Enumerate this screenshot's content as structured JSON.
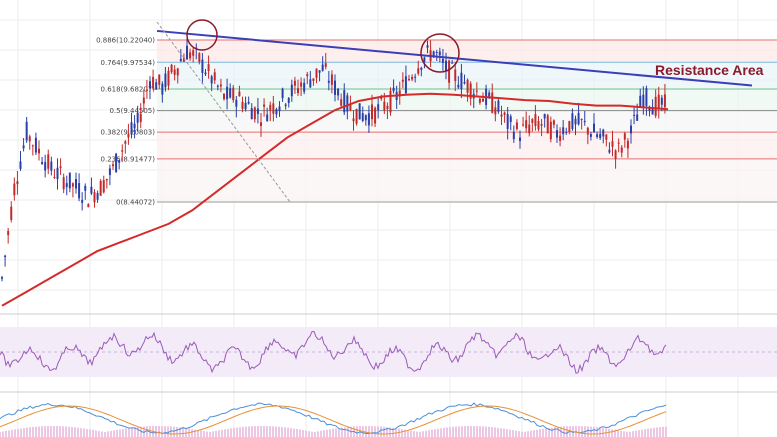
{
  "chart_data": {
    "type": "candlestick",
    "title": "",
    "xlabel": "",
    "ylabel": "",
    "ylim": [
      8.2,
      10.45
    ],
    "grid": true,
    "fib_levels": [
      {
        "ratio": "0.886",
        "price": "10.22040",
        "label": "0.886(10.22040)",
        "value": 10.2204
      },
      {
        "ratio": "0.764",
        "price": "9.97534",
        "label": "0.764(9.97534)",
        "value": 9.97534
      },
      {
        "ratio": "0.618",
        "price": "9.68207",
        "label": "0.618(9.68207)",
        "value": 9.68207
      },
      {
        "ratio": "0.5",
        "price": "9.44505",
        "label": "0.5(9.44505)",
        "value": 9.44505
      },
      {
        "ratio": "0.382",
        "price": "9.20803",
        "label": "0.382(9.20803)",
        "value": 9.20803
      },
      {
        "ratio": "0.236",
        "price": "8.91477",
        "label": "0.236(8.91477)",
        "value": 8.91477
      },
      {
        "ratio": "0",
        "price": "8.44072",
        "label": "0(8.44072)",
        "value": 8.44072
      }
    ],
    "annotation": "Resistance Area",
    "resistance_line": {
      "start": [
        0.0,
        10.32
      ],
      "end": [
        1.0,
        9.72
      ]
    },
    "close_series": [
      7.6,
      8.6,
      9.2,
      9.0,
      8.8,
      8.7,
      8.6,
      8.5,
      8.6,
      8.8,
      9.1,
      9.3,
      9.8,
      9.7,
      9.9,
      10.1,
      10.0,
      9.8,
      9.6,
      9.6,
      9.5,
      9.4,
      9.5,
      9.6,
      9.7,
      9.8,
      9.9,
      9.7,
      9.5,
      9.4,
      9.4,
      9.5,
      9.6,
      9.8,
      10.0,
      10.1,
      9.9,
      9.8,
      9.7,
      9.6,
      9.5,
      9.3,
      9.2,
      9.3,
      9.3,
      9.2,
      9.3,
      9.3,
      9.2,
      9.1,
      9.0,
      9.2,
      9.6,
      9.5,
      9.5
    ],
    "ma_series": [
      7.3,
      7.45,
      7.6,
      7.75,
      7.9,
      8.0,
      8.1,
      8.2,
      8.35,
      8.55,
      8.75,
      8.95,
      9.15,
      9.3,
      9.45,
      9.55,
      9.6,
      9.62,
      9.63,
      9.62,
      9.6,
      9.58,
      9.56,
      9.55,
      9.52,
      9.5,
      9.5,
      9.48,
      9.46
    ]
  }
}
